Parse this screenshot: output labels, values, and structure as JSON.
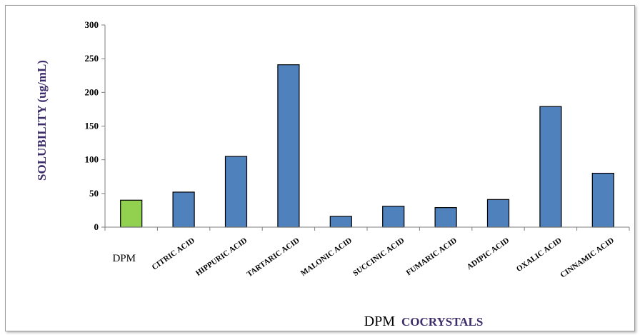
{
  "chart_data": {
    "type": "bar",
    "title": "",
    "xlabel_prefix": "DPM",
    "xlabel_main": "COCRYSTALS",
    "ylabel": "SOLUBILITY (ug/mL)",
    "ylim": [
      0,
      300
    ],
    "yticks": [
      0,
      50,
      100,
      150,
      200,
      250,
      300
    ],
    "grid": false,
    "legend": "none",
    "categories": [
      "DPM",
      "CITRIC ACID",
      "HIPPURIC ACID",
      "TARTARIC ACID",
      "MALONIC ACID",
      "SUCCINIC ACID",
      "FUMARIC ACID",
      "ADIPIC ACID",
      "OXALIC ACID",
      "CINNAMIC ACID"
    ],
    "values": [
      40,
      52,
      105,
      241,
      16,
      31,
      29,
      41,
      179,
      80
    ],
    "bar_colors": [
      "#92d050",
      "#4f81bd",
      "#4f81bd",
      "#4f81bd",
      "#4f81bd",
      "#4f81bd",
      "#4f81bd",
      "#4f81bd",
      "#4f81bd",
      "#4f81bd"
    ],
    "label_color": "#3d2e6b",
    "axis_color": "#7f7f7f"
  }
}
